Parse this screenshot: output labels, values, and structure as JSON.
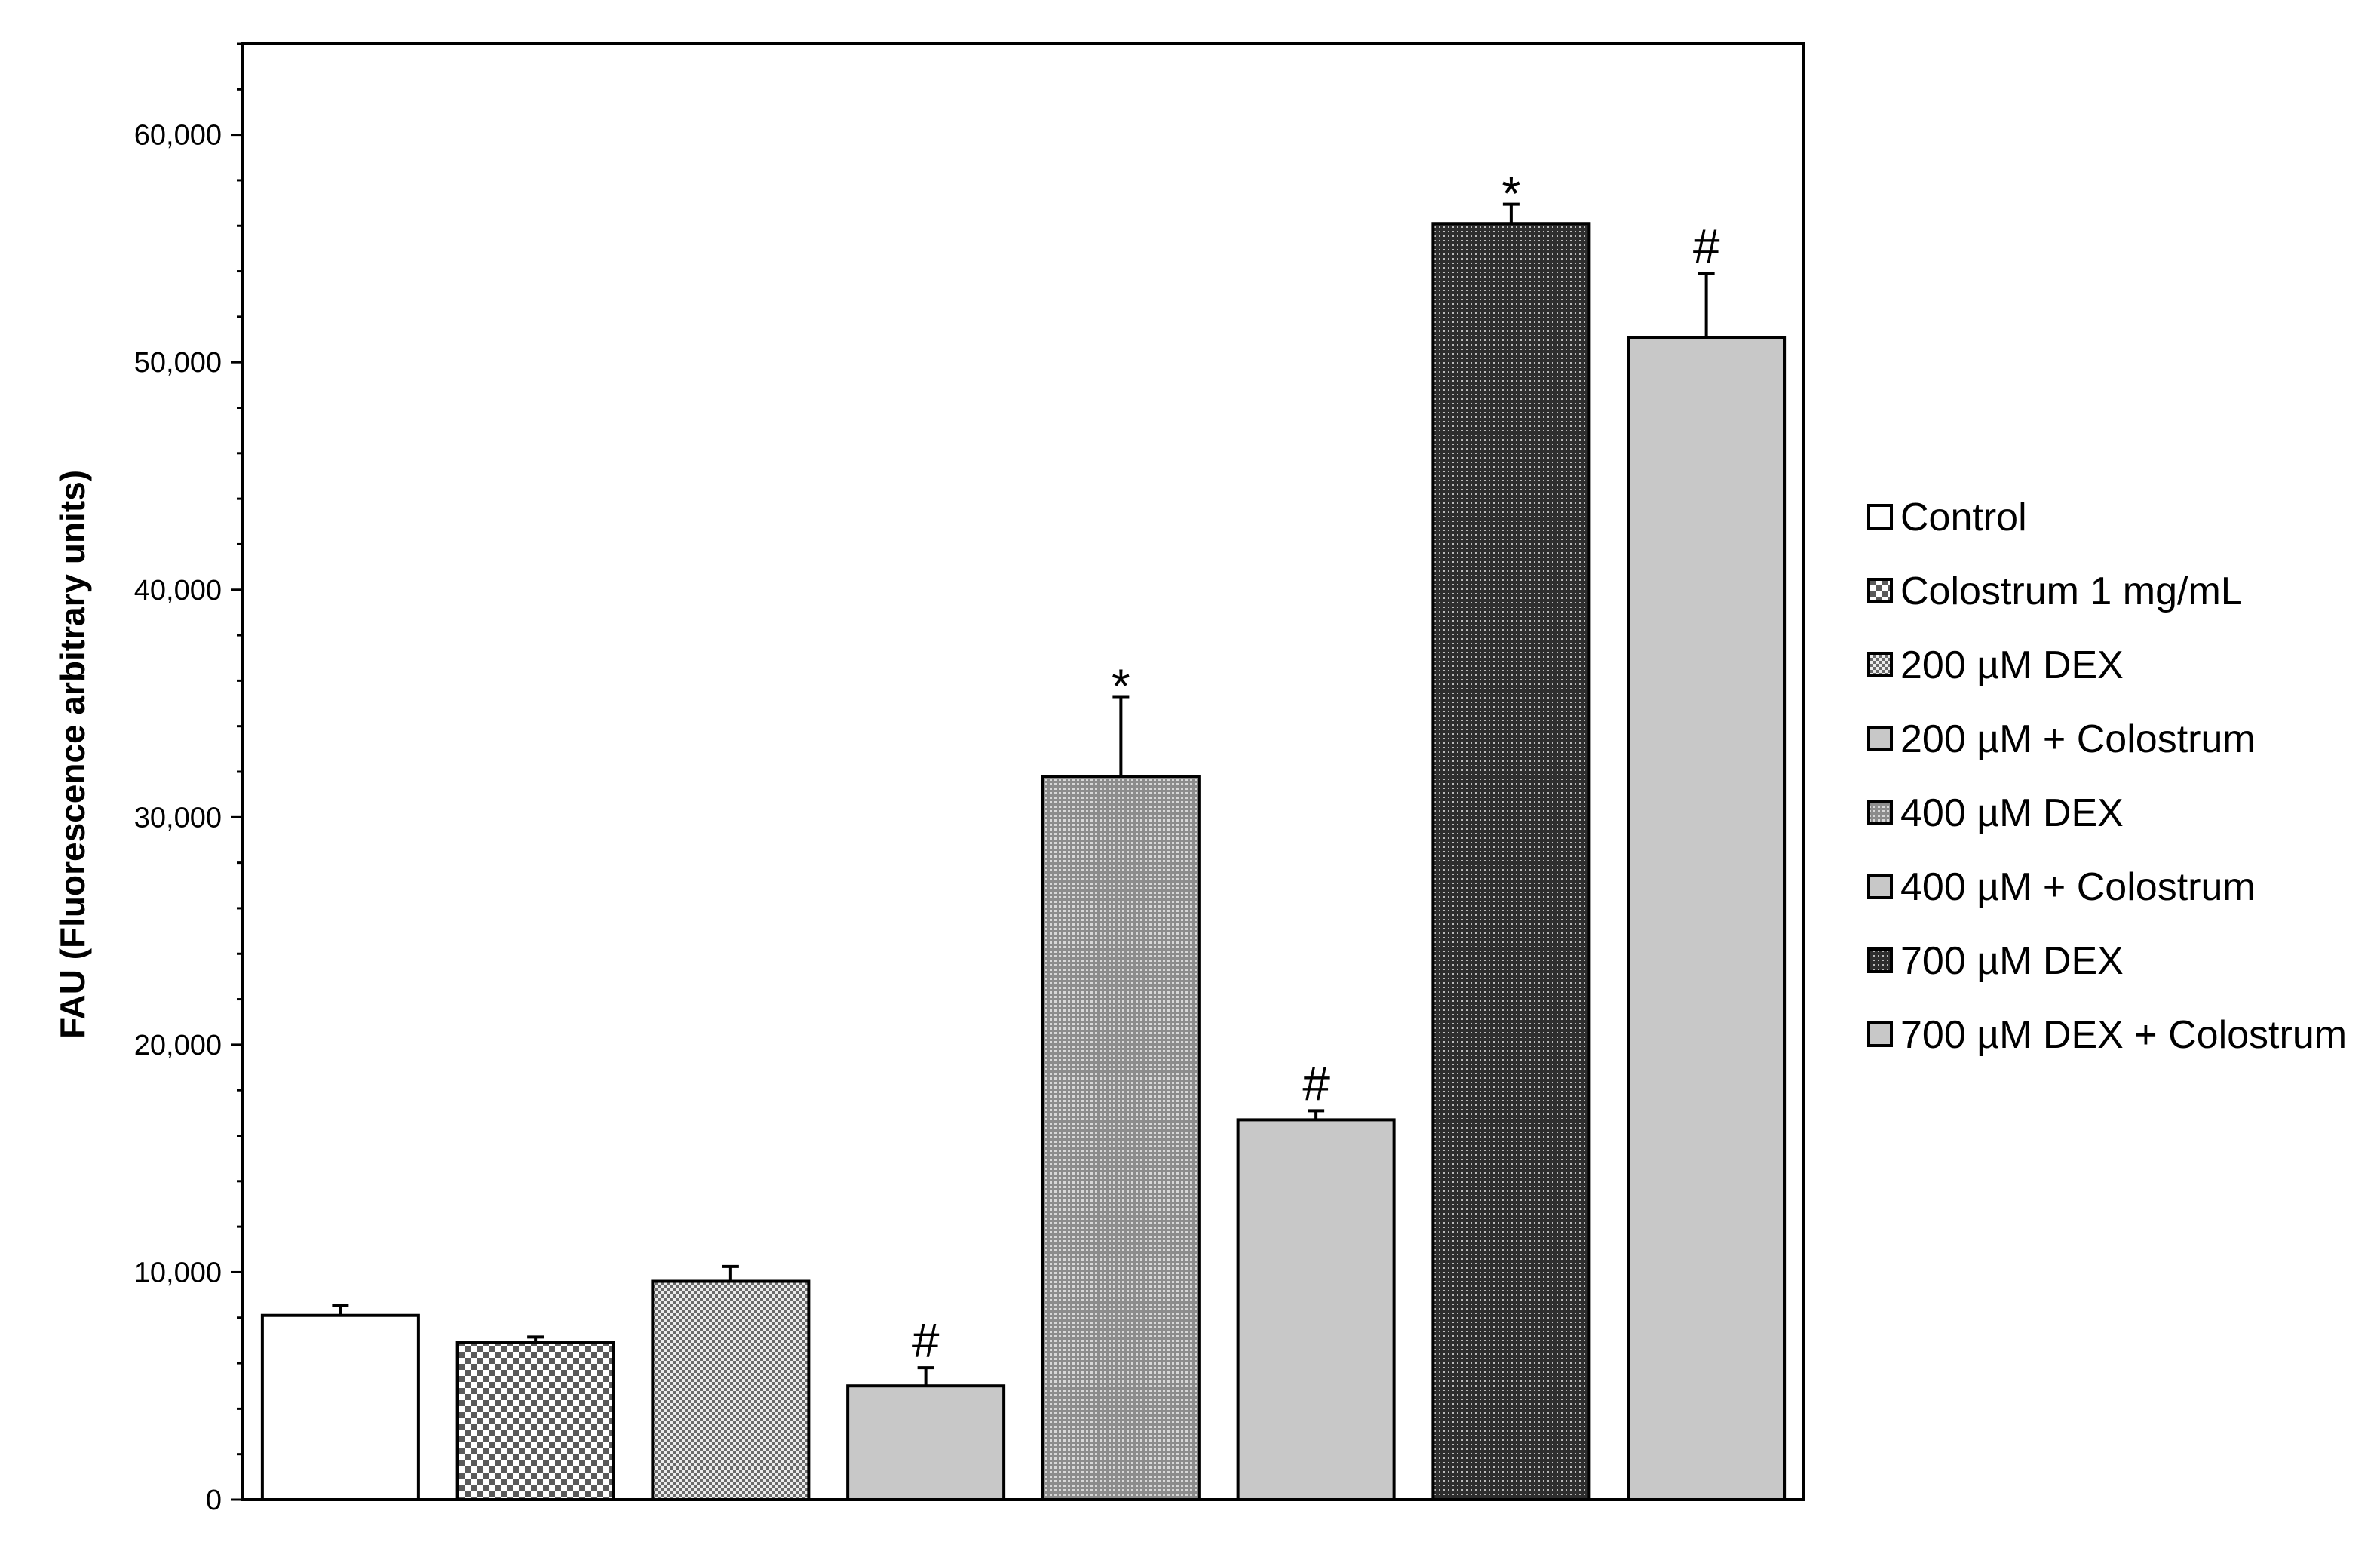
{
  "chart_data": {
    "type": "bar",
    "ylabel": "FAU (Fluorescence arbitrary units)",
    "xlabel": "",
    "ylim": [
      0,
      64000
    ],
    "y_ticks": [
      0,
      10000,
      20000,
      30000,
      40000,
      50000,
      60000
    ],
    "y_tick_labels": [
      "0",
      "10,000",
      "20,000",
      "30,000",
      "40,000",
      "50,000",
      "60,000"
    ],
    "grid": false,
    "legend_position": "right",
    "categories": [
      "Control",
      "Colostrum 1 mg/mL",
      "200 µM DEX",
      "200 µM + Colostrum",
      "400 µM DEX",
      "400 µM + Colostrum",
      "700 µM DEX",
      "700 µM DEX + Colostrum"
    ],
    "values": [
      8100,
      6900,
      9600,
      5000,
      31800,
      16700,
      56100,
      51100
    ],
    "errors": [
      450,
      250,
      650,
      800,
      3500,
      400,
      850,
      2800
    ],
    "annotations": [
      "",
      "",
      "",
      "#",
      "*",
      "#",
      "*",
      "#"
    ],
    "fills": [
      "white",
      "checker-coarse",
      "checker-fine",
      "gray",
      "dots-gray",
      "gray",
      "dots-dark",
      "gray"
    ]
  }
}
